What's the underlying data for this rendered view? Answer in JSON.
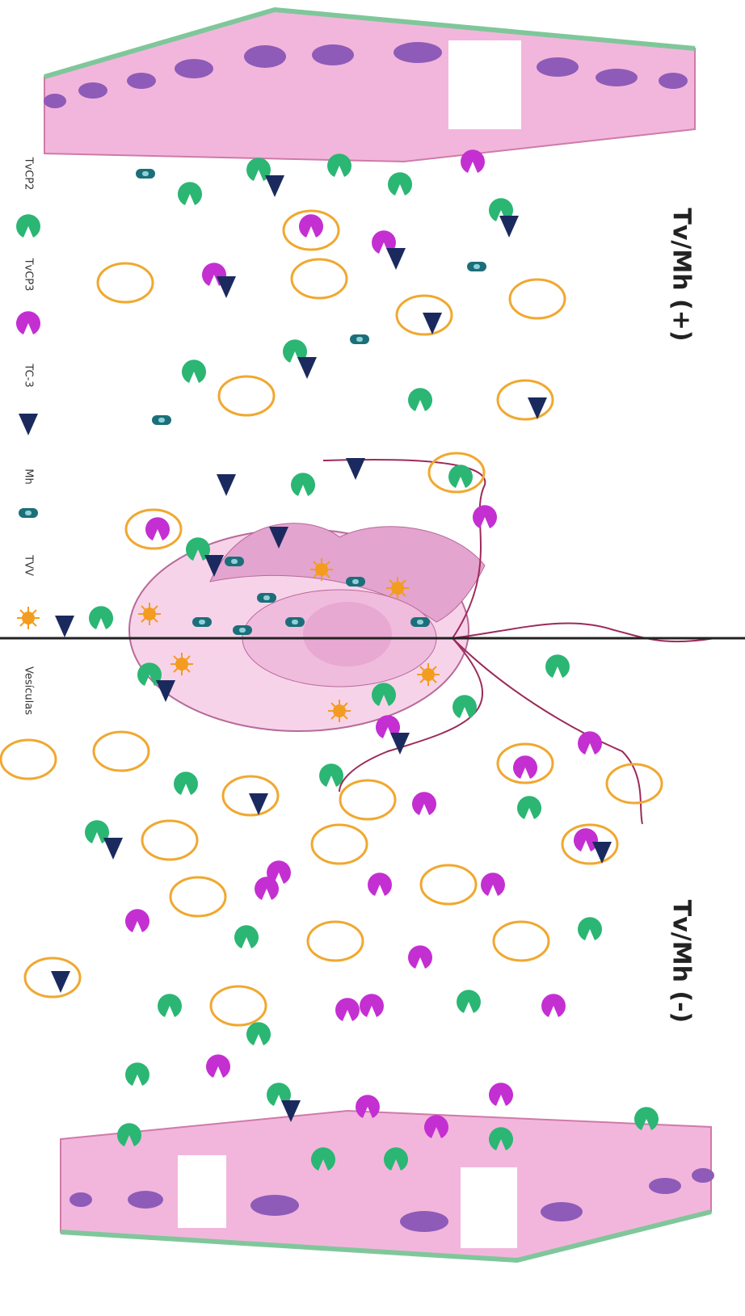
{
  "labels": {
    "top": "Tv/Mh (+)",
    "bottom": "Tv/Mh (-)"
  },
  "legend": [
    {
      "label": "TvCP2"
    },
    {
      "label": "TvCP3"
    },
    {
      "label": "TC-3"
    },
    {
      "label": "Mh"
    },
    {
      "label": "TVV"
    },
    {
      "label": "Vesículas"
    }
  ]
}
